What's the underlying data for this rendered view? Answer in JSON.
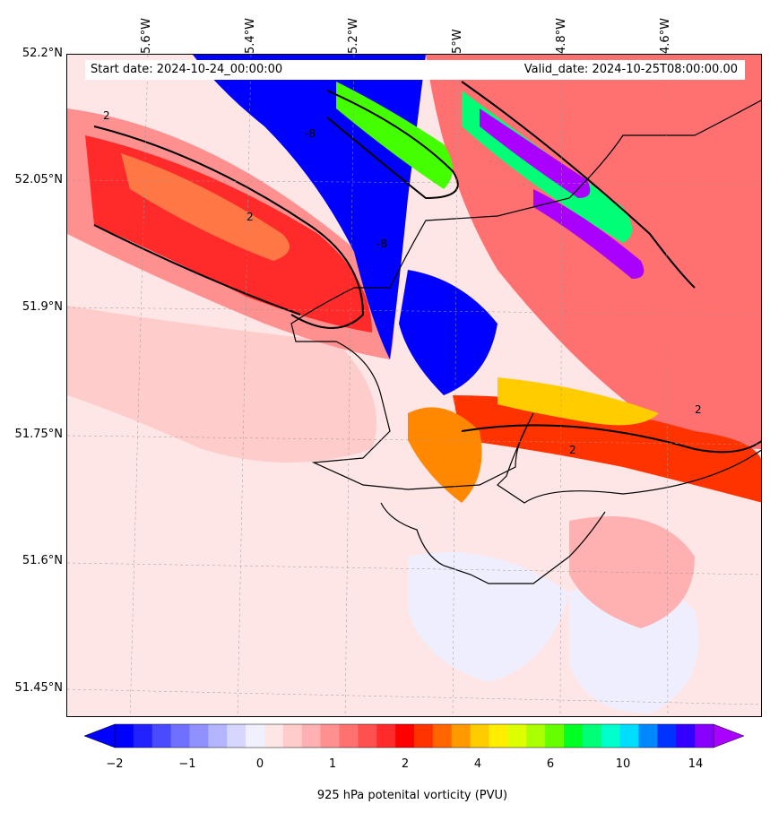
{
  "header": {
    "start_date": "Start date: 2024-10-24_00:00:00",
    "valid_date": "Valid_date: 2024-10-25T08:00:00.00"
  },
  "axes": {
    "lon_labels": [
      "5.6°W",
      "5.4°W",
      "5.2°W",
      "5°W",
      "4.8°W",
      "4.6°W"
    ],
    "lat_labels": [
      "52.2°N",
      "52.05°N",
      "51.9°N",
      "51.75°N",
      "51.6°N",
      "51.45°N"
    ]
  },
  "contour_labels": {
    "positive": "2",
    "negative": "-8"
  },
  "colorbar": {
    "ticks": [
      "−2",
      "−1",
      "0",
      "1",
      "2",
      "4",
      "6",
      "10",
      "14"
    ],
    "label": "925 hPa potenital vorticity (PVU)",
    "colors": [
      "#0000ff",
      "#2222ff",
      "#4a4aff",
      "#7070ff",
      "#9090ff",
      "#b4b4ff",
      "#d6d6ff",
      "#f0f0ff",
      "#ffe6e6",
      "#ffcccc",
      "#ffb0b0",
      "#ff9090",
      "#ff7070",
      "#ff5050",
      "#ff2a2a",
      "#ff0000",
      "#ff3300",
      "#ff6600",
      "#ff9900",
      "#ffcc00",
      "#ffee00",
      "#ddff00",
      "#aaff00",
      "#66ff00",
      "#00ff22",
      "#00ff77",
      "#00ffcc",
      "#00ddff",
      "#0088ff",
      "#0033ff",
      "#3300ff",
      "#8800ff"
    ]
  },
  "map_colors": {
    "background": "#ffe6e6",
    "land": "#ffcccc",
    "blue": "#0000ff",
    "red": "#ff2a2a",
    "orange": "#ff8800",
    "yellow": "#ffee00",
    "green": "#44ff00",
    "purple": "#aa00ff",
    "coast": "#000000"
  }
}
